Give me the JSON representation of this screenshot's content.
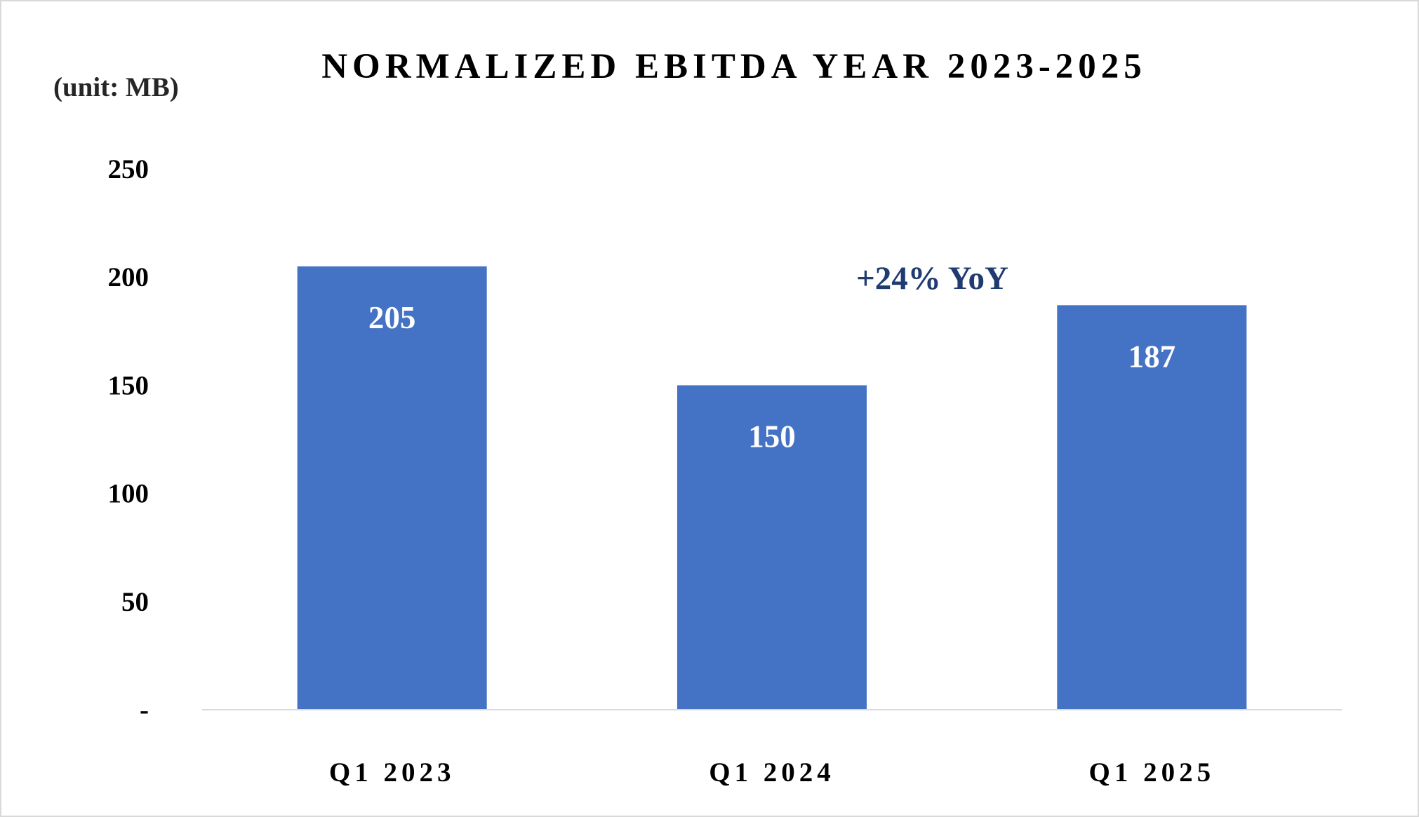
{
  "chart_data": {
    "type": "bar",
    "title": "NORMALIZED EBITDA YEAR 2023-2025",
    "unit_label": "(unit: MB)",
    "categories": [
      "Q1 2023",
      "Q1 2024",
      "Q1 2025"
    ],
    "values": [
      205,
      150,
      187
    ],
    "data_labels": [
      "205",
      "150",
      "187"
    ],
    "ylim": [
      0,
      250
    ],
    "yticks": [
      0,
      50,
      100,
      150,
      200,
      250
    ],
    "ytick_labels": [
      "-",
      "50",
      "100",
      "150",
      "200",
      "250"
    ],
    "annotation": "+24% YoY",
    "grid": false,
    "legend": "none",
    "bar_color": "#4472c4",
    "annotation_color": "#1f3b70"
  }
}
